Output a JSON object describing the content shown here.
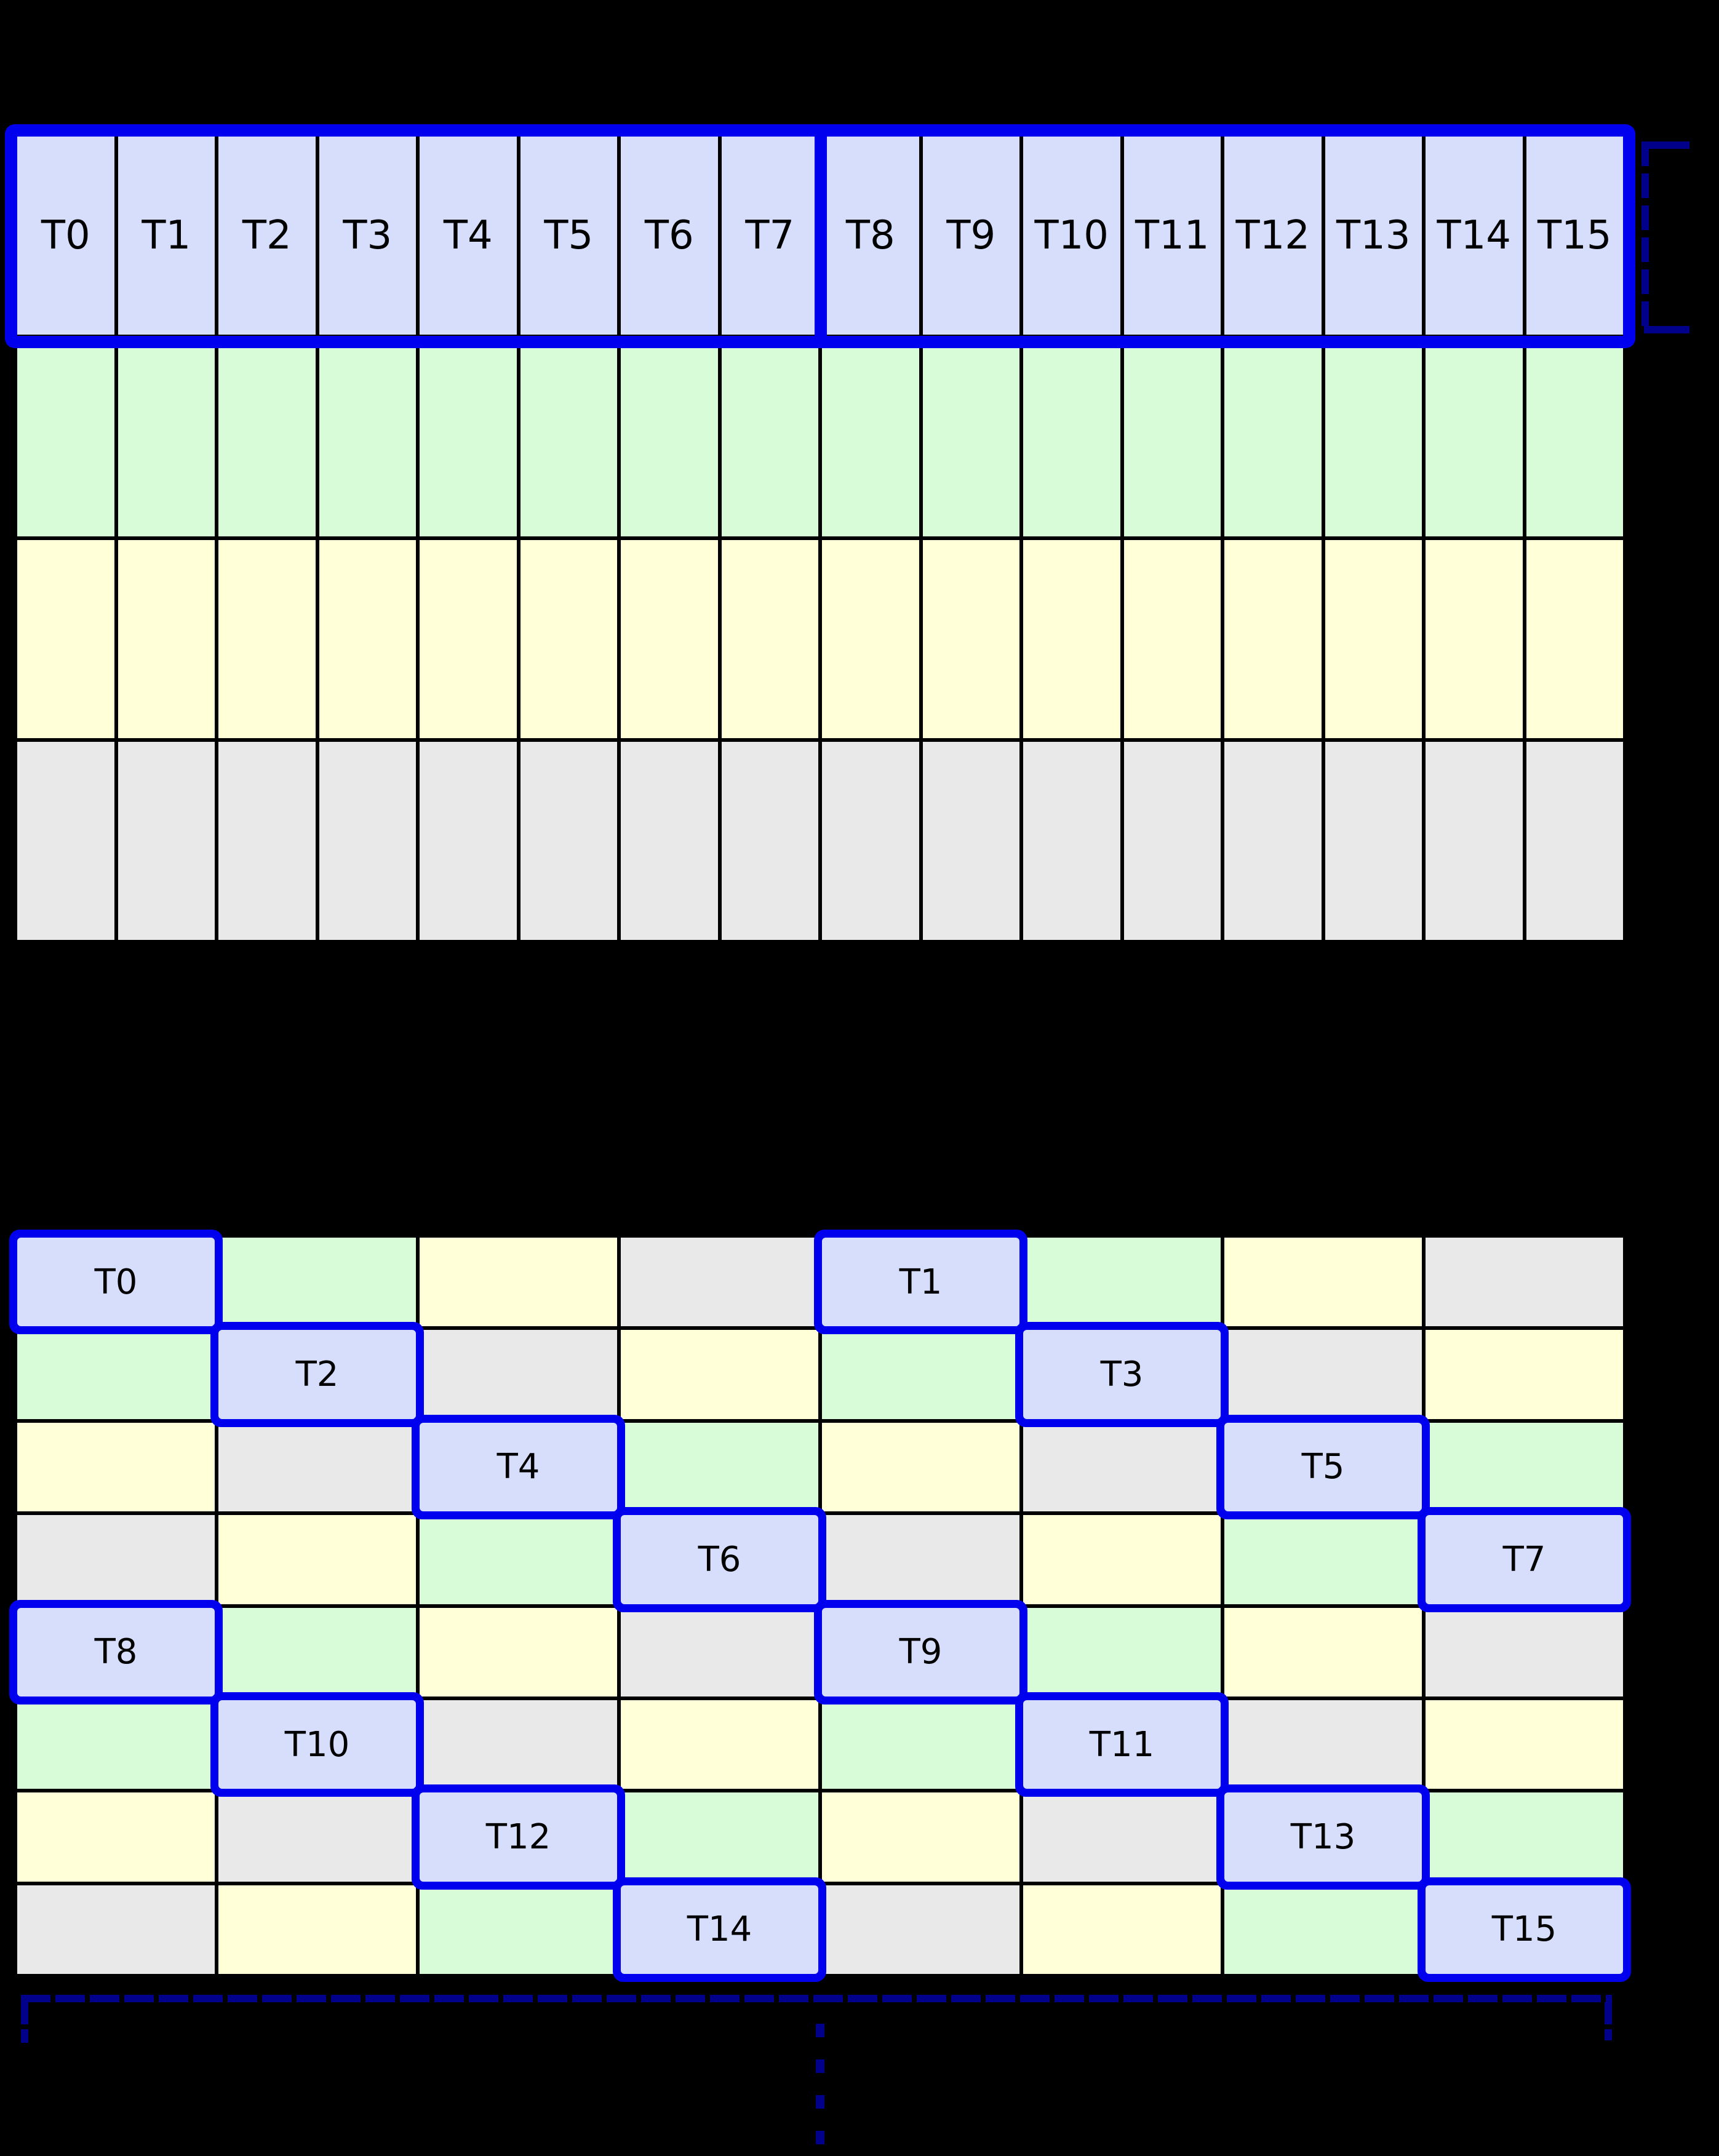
{
  "figure": {
    "kind": "thread-memory-access-diagram",
    "background": "#000000"
  },
  "palette": {
    "thread_cell": "#d6defc",
    "green_cell": "#d8fcd7",
    "yellow_cell": "#ffffd8",
    "gray_cell": "#e9e9e9",
    "highlight_border": "#0000ee",
    "bracket": "#00008b",
    "gridline": "#000000"
  },
  "top_grid": {
    "columns": 16,
    "rows": 4,
    "thread_labels": [
      "T0",
      "T1",
      "T2",
      "T3",
      "T4",
      "T5",
      "T6",
      "T7",
      "T8",
      "T9",
      "T10",
      "T11",
      "T12",
      "T13",
      "T14",
      "T15"
    ],
    "row_fills": [
      "thread",
      "green",
      "yellow",
      "gray"
    ],
    "half_warp_divider_after_column": 8
  },
  "bottom_grid": {
    "columns": 8,
    "rows": 8,
    "cells": [
      [
        "T0",
        "green",
        "yellow",
        "gray",
        "T1",
        "green",
        "yellow",
        "gray"
      ],
      [
        "green",
        "T2",
        "gray",
        "yellow",
        "green",
        "T3",
        "gray",
        "yellow"
      ],
      [
        "yellow",
        "gray",
        "T4",
        "green",
        "yellow",
        "gray",
        "T5",
        "green"
      ],
      [
        "gray",
        "yellow",
        "green",
        "T6",
        "gray",
        "yellow",
        "green",
        "T7"
      ],
      [
        "T8",
        "green",
        "yellow",
        "gray",
        "T9",
        "green",
        "yellow",
        "gray"
      ],
      [
        "green",
        "T10",
        "gray",
        "yellow",
        "green",
        "T11",
        "gray",
        "yellow"
      ],
      [
        "yellow",
        "gray",
        "T12",
        "green",
        "yellow",
        "gray",
        "T13",
        "green"
      ],
      [
        "gray",
        "yellow",
        "green",
        "T14",
        "gray",
        "yellow",
        "green",
        "T15"
      ]
    ]
  },
  "annotations": {
    "right_bracket_icon": "dashed-square-bracket",
    "bottom_bracket_icon": "dashed-span-bracket",
    "continuation_icon": "vertical-ellipsis"
  }
}
